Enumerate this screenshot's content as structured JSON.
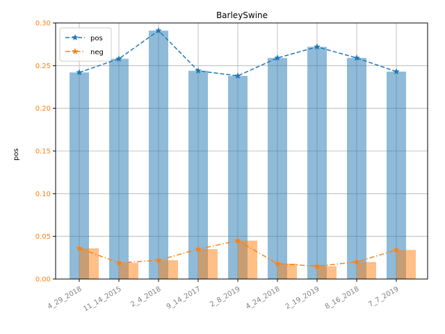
{
  "chart_data": {
    "type": "bar",
    "title": "BarleySwine",
    "xlabel": "",
    "ylabel": "pos",
    "ylim": [
      0,
      0.3
    ],
    "yticks": [
      0.0,
      0.05,
      0.1,
      0.15,
      0.2,
      0.25,
      0.3
    ],
    "categories": [
      "4_29_2018",
      "11_14_2015",
      "2_4_2018",
      "9_14_2017",
      "2_8_2019",
      "4_24_2018",
      "2_19_2019",
      "8_16_2018",
      "7_7_2019"
    ],
    "series": [
      {
        "name": "pos",
        "values": [
          0.242,
          0.258,
          0.291,
          0.244,
          0.238,
          0.259,
          0.272,
          0.259,
          0.243
        ],
        "color": "#1f77b4",
        "line_style": "dashed",
        "marker": "star"
      },
      {
        "name": "neg",
        "values": [
          0.036,
          0.019,
          0.022,
          0.035,
          0.045,
          0.018,
          0.015,
          0.02,
          0.034
        ],
        "color": "#ff7f0e",
        "line_style": "dashdot",
        "marker": "star"
      }
    ],
    "grid": true,
    "legend_position": "top-left",
    "tick_label_rotation": 30
  }
}
